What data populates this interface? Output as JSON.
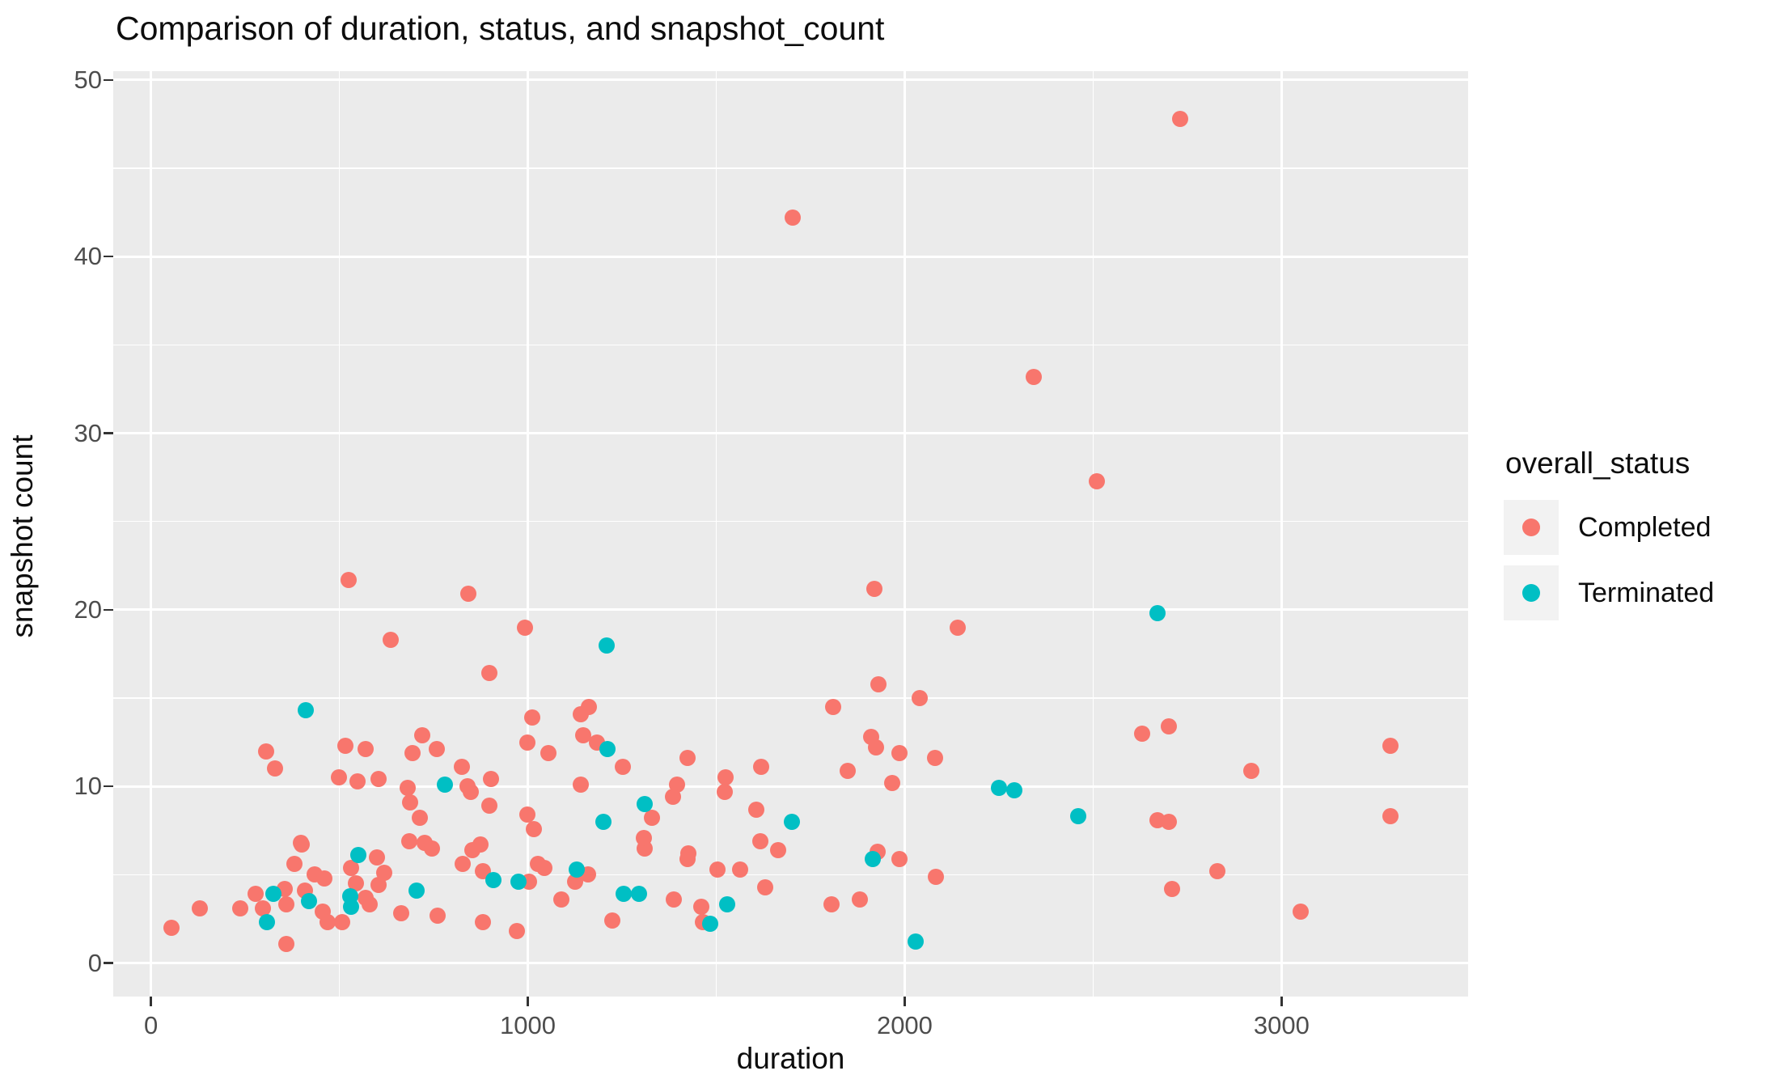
{
  "title": "Comparison of duration, status, and snapshot_count",
  "x_axis": {
    "title": "duration",
    "tick_labels": [
      "0",
      "1000",
      "2000",
      "3000"
    ]
  },
  "y_axis": {
    "title": "snapshot count",
    "tick_labels": [
      "0",
      "10",
      "20",
      "30",
      "40",
      "50"
    ]
  },
  "legend": {
    "title": "overall_status",
    "items": [
      {
        "label": "Completed",
        "color": "#F8766D"
      },
      {
        "label": "Terminated",
        "color": "#00BFC4"
      }
    ]
  },
  "colors": {
    "panel_background": "#EBEBEB",
    "gridline": "#FFFFFF",
    "tick_text": "#4D4D4D",
    "legend_key_background": "#F2F2F2",
    "completed": "#F8766D",
    "terminated": "#00BFC4"
  },
  "chart_data": {
    "type": "scatter",
    "title": "Comparison of duration, status, and snapshot_count",
    "xlabel": "duration",
    "ylabel": "snapshot count",
    "x_range": [
      -100,
      3495
    ],
    "y_range": [
      -1.9,
      50.5
    ],
    "x_major_ticks": [
      0,
      1000,
      2000,
      3000
    ],
    "x_minor_ticks": [
      500,
      1500,
      2500
    ],
    "y_major_ticks": [
      0,
      10,
      20,
      30,
      40,
      50
    ],
    "y_minor_ticks": [
      5,
      15,
      25,
      35,
      45
    ],
    "grid": true,
    "legend_position": "right",
    "series": [
      {
        "name": "Completed",
        "color": "#F8766D",
        "points": [
          [
            2730,
            47.8
          ],
          [
            1702,
            42.2
          ],
          [
            2343,
            33.2
          ],
          [
            2510,
            27.3
          ],
          [
            524,
            21.7
          ],
          [
            1920,
            21.2
          ],
          [
            843,
            20.9
          ],
          [
            993,
            19.0
          ],
          [
            2140,
            19.0
          ],
          [
            637,
            18.3
          ],
          [
            897,
            16.4
          ],
          [
            1930,
            15.8
          ],
          [
            2040,
            15.0
          ],
          [
            1012,
            13.9
          ],
          [
            1140,
            14.1
          ],
          [
            1162,
            14.5
          ],
          [
            1810,
            14.5
          ],
          [
            2630,
            13.0
          ],
          [
            2700,
            13.4
          ],
          [
            305,
            12.0
          ],
          [
            330,
            11.0
          ],
          [
            517,
            12.3
          ],
          [
            569,
            12.1
          ],
          [
            719,
            12.9
          ],
          [
            758,
            12.1
          ],
          [
            695,
            11.9
          ],
          [
            824,
            11.1
          ],
          [
            498,
            10.5
          ],
          [
            549,
            10.3
          ],
          [
            605,
            10.4
          ],
          [
            682,
            9.9
          ],
          [
            848,
            9.7
          ],
          [
            903,
            10.4
          ],
          [
            687,
            9.1
          ],
          [
            713,
            8.2
          ],
          [
            841,
            10.0
          ],
          [
            897,
            8.9
          ],
          [
            998,
            8.4
          ],
          [
            1017,
            7.6
          ],
          [
            1054,
            11.9
          ],
          [
            998,
            12.5
          ],
          [
            1148,
            12.9
          ],
          [
            1183,
            12.5
          ],
          [
            1253,
            11.1
          ],
          [
            1423,
            11.6
          ],
          [
            1140,
            10.1
          ],
          [
            1395,
            10.1
          ],
          [
            1386,
            9.4
          ],
          [
            1524,
            10.5
          ],
          [
            1522,
            9.7
          ],
          [
            1620,
            11.1
          ],
          [
            1848,
            10.9
          ],
          [
            1910,
            12.8
          ],
          [
            1925,
            12.2
          ],
          [
            1987,
            11.9
          ],
          [
            1966,
            10.2
          ],
          [
            2080,
            11.6
          ],
          [
            1330,
            8.2
          ],
          [
            1607,
            8.7
          ],
          [
            2920,
            10.9
          ],
          [
            3290,
            12.3
          ],
          [
            2670,
            8.1
          ],
          [
            2700,
            8.0
          ],
          [
            3290,
            8.3
          ],
          [
            1311,
            6.5
          ],
          [
            1618,
            6.9
          ],
          [
            1664,
            6.4
          ],
          [
            1423,
            5.9
          ],
          [
            1928,
            6.3
          ],
          [
            685,
            6.9
          ],
          [
            727,
            6.8
          ],
          [
            400,
            6.7
          ],
          [
            745,
            6.5
          ],
          [
            828,
            5.6
          ],
          [
            854,
            6.4
          ],
          [
            875,
            6.7
          ],
          [
            880,
            5.2
          ],
          [
            1026,
            5.6
          ],
          [
            1045,
            5.4
          ],
          [
            1004,
            4.6
          ],
          [
            1088,
            3.6
          ],
          [
            1125,
            4.6
          ],
          [
            1160,
            5.0
          ],
          [
            1307,
            7.1
          ],
          [
            1427,
            6.2
          ],
          [
            1504,
            5.3
          ],
          [
            1564,
            5.3
          ],
          [
            1629,
            4.3
          ],
          [
            1987,
            5.9
          ],
          [
            2082,
            4.9
          ],
          [
            2830,
            5.2
          ],
          [
            2710,
            4.2
          ],
          [
            3050,
            2.9
          ],
          [
            55,
            2.0
          ],
          [
            130,
            3.1
          ],
          [
            237,
            3.1
          ],
          [
            277,
            3.9
          ],
          [
            298,
            3.1
          ],
          [
            355,
            4.2
          ],
          [
            360,
            3.3
          ],
          [
            360,
            1.1
          ],
          [
            380,
            5.6
          ],
          [
            397,
            6.8
          ],
          [
            408,
            4.1
          ],
          [
            435,
            5.0
          ],
          [
            460,
            4.8
          ],
          [
            455,
            2.9
          ],
          [
            468,
            2.3
          ],
          [
            508,
            2.3
          ],
          [
            532,
            5.4
          ],
          [
            543,
            4.5
          ],
          [
            570,
            3.7
          ],
          [
            581,
            3.3
          ],
          [
            600,
            6.0
          ],
          [
            620,
            5.1
          ],
          [
            605,
            4.4
          ],
          [
            665,
            2.8
          ],
          [
            760,
            2.7
          ],
          [
            880,
            2.3
          ],
          [
            970,
            1.8
          ],
          [
            1225,
            2.4
          ],
          [
            1388,
            3.6
          ],
          [
            1461,
            3.2
          ],
          [
            1465,
            2.3
          ],
          [
            1805,
            3.3
          ],
          [
            1882,
            3.6
          ]
        ]
      },
      {
        "name": "Terminated",
        "color": "#00BFC4",
        "points": [
          [
            410,
            14.3
          ],
          [
            1210,
            18.0
          ],
          [
            2670,
            19.8
          ],
          [
            780,
            10.1
          ],
          [
            1212,
            12.1
          ],
          [
            1310,
            9.0
          ],
          [
            1200,
            8.0
          ],
          [
            1700,
            8.0
          ],
          [
            2250,
            9.9
          ],
          [
            2290,
            9.8
          ],
          [
            2460,
            8.3
          ],
          [
            1130,
            5.3
          ],
          [
            1255,
            3.9
          ],
          [
            1295,
            3.9
          ],
          [
            1528,
            3.3
          ],
          [
            1915,
            5.9
          ],
          [
            2030,
            1.2
          ],
          [
            1485,
            2.2
          ],
          [
            908,
            4.7
          ],
          [
            976,
            4.6
          ],
          [
            704,
            4.1
          ],
          [
            307,
            2.3
          ],
          [
            325,
            3.9
          ],
          [
            420,
            3.5
          ],
          [
            528,
            3.8
          ],
          [
            530,
            3.2
          ],
          [
            550,
            6.1
          ]
        ]
      }
    ]
  }
}
